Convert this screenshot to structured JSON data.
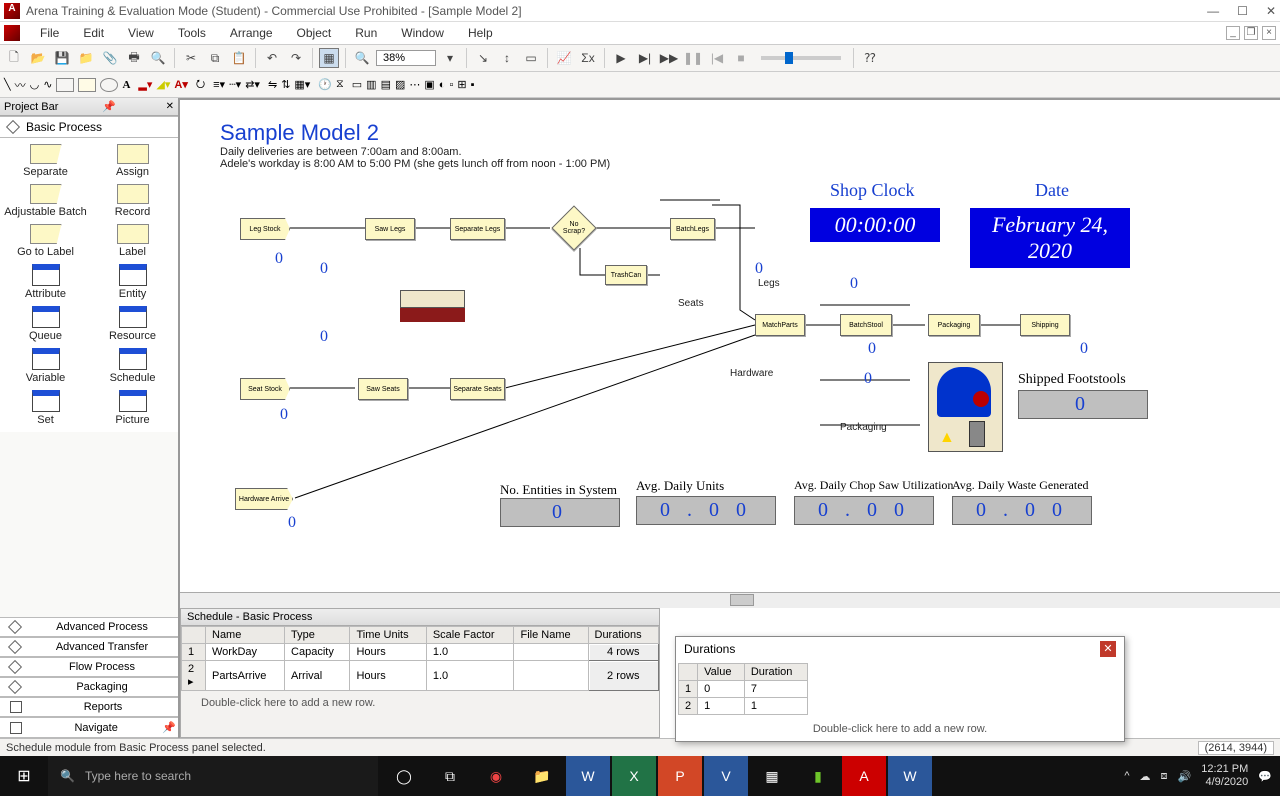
{
  "window": {
    "title": "Arena Training & Evaluation Mode (Student) - Commercial Use Prohibited - [Sample Model 2]",
    "menus": [
      "File",
      "Edit",
      "View",
      "Tools",
      "Arrange",
      "Object",
      "Run",
      "Window",
      "Help"
    ],
    "zoom": "38%"
  },
  "projectbar": {
    "title": "Project Bar",
    "active_panel": "Basic Process",
    "modules": [
      {
        "label": "Separate",
        "shape": "trap"
      },
      {
        "label": "Assign",
        "shape": "rect"
      },
      {
        "label": "Adjustable Batch",
        "shape": "trap"
      },
      {
        "label": "Record",
        "shape": "rect"
      },
      {
        "label": "Go to Label",
        "shape": "trap"
      },
      {
        "label": "Label",
        "shape": "rect"
      },
      {
        "label": "Attribute",
        "shape": "sheet"
      },
      {
        "label": "Entity",
        "shape": "sheet"
      },
      {
        "label": "Queue",
        "shape": "sheet"
      },
      {
        "label": "Resource",
        "shape": "sheet"
      },
      {
        "label": "Variable",
        "shape": "sheet"
      },
      {
        "label": "Schedule",
        "shape": "sheet"
      },
      {
        "label": "Set",
        "shape": "sheet"
      },
      {
        "label": "Picture",
        "shape": "sheet"
      }
    ],
    "panels": [
      "Advanced Process",
      "Advanced Transfer",
      "Flow Process",
      "Packaging",
      "Reports",
      "Navigate"
    ]
  },
  "model": {
    "title": "Sample Model 2",
    "desc1": "Daily deliveries are between 7:00am and 8:00am.",
    "desc2": "Adele's workday is 8:00 AM to 5:00 PM (she gets lunch off from noon - 1:00 PM)",
    "clock_label": "Shop Clock",
    "clock_value": "00:00:00",
    "date_label": "Date",
    "date_value": "February 24, 2020",
    "blocks": {
      "leg_stock": "Leg Stock",
      "saw_legs": "Saw Legs",
      "sep_legs": "Separate Legs",
      "no_scrap": "No Scrap?",
      "batch_legs": "BatchLegs",
      "trash": "TrashCan",
      "seat_stock": "Seat Stock",
      "saw_seats": "Saw Seats",
      "sep_seats": "Separate Seats",
      "hw_arrive": "Hardware Arrive",
      "match": "MatchParts",
      "batch_stool": "BatchStool",
      "packaging": "Packaging",
      "shipping": "Shipping"
    },
    "counters": {
      "c1": "0",
      "c2": "0",
      "c3": "0",
      "c4": "0",
      "c5": "0",
      "c6": "0",
      "c7": "0",
      "c8": "0",
      "c9": "0",
      "c10": "0"
    },
    "areas": {
      "legs": "Legs",
      "seats": "Seats",
      "hardware": "Hardware",
      "packaging": "Packaging"
    },
    "shipped_label": "Shipped Footstools",
    "shipped_val": "0",
    "stats": {
      "s1_h": "No. Entities in System",
      "s1_v": "0",
      "s2_h": "Avg. Daily Units",
      "s2_v": "0 . 0 0",
      "s3_h": "Avg. Daily Chop Saw Utilization",
      "s3_v": "0 . 0 0",
      "s4_h": "Avg. Daily Waste Generated",
      "s4_v": "0 . 0 0"
    }
  },
  "schedule": {
    "title": "Schedule - Basic Process",
    "cols": [
      "",
      "Name",
      "Type",
      "Time Units",
      "Scale Factor",
      "File Name",
      "Durations"
    ],
    "rows": [
      {
        "n": "1",
        "name": "WorkDay",
        "type": "Capacity",
        "tu": "Hours",
        "sf": "1.0",
        "fn": "",
        "dur": "4 rows"
      },
      {
        "n": "2",
        "name": "PartsArrive",
        "type": "Arrival",
        "tu": "Hours",
        "sf": "1.0",
        "fn": "",
        "dur": "2 rows"
      }
    ],
    "hint": "Double-click here to add a new row."
  },
  "durations": {
    "title": "Durations",
    "cols": [
      "",
      "Value",
      "Duration"
    ],
    "rows": [
      {
        "n": "1",
        "v": "0",
        "d": "7"
      },
      {
        "n": "2",
        "v": "1",
        "d": "1"
      }
    ],
    "hint": "Double-click here to add a new row."
  },
  "status": {
    "msg": "Schedule module from Basic Process panel selected.",
    "coords": "(2614, 3944)"
  },
  "taskbar": {
    "search_ph": "Type here to search",
    "time": "12:21 PM",
    "date": "4/9/2020"
  }
}
